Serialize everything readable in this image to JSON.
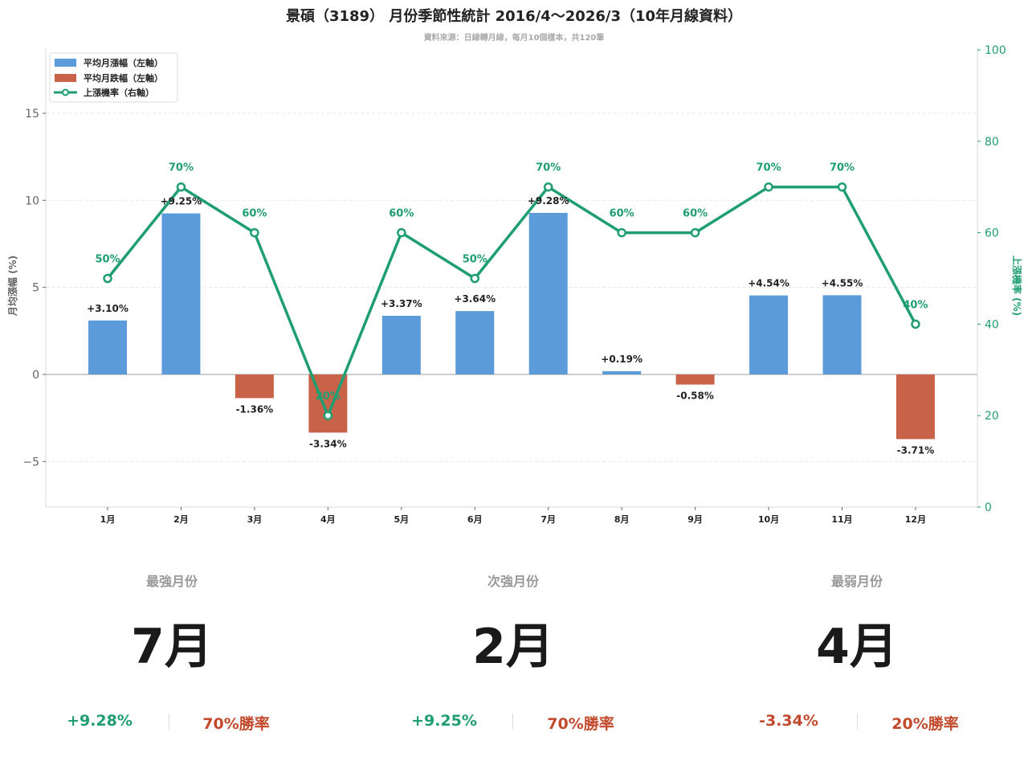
{
  "header": {
    "title": "景碩（3189） 月份季節性統計 2016/4～2026/3（10年月線資料）",
    "subtitle": "資料來源：日線轉月線，每月10個樣本，共120筆"
  },
  "legend": {
    "up_bar": "平均月漲幅（左軸）",
    "down_bar": "平均月跌幅（左軸）",
    "line": "上漲機率（右軸）"
  },
  "axes": {
    "left_label": "月均漲幅 (%)",
    "right_label": "上漲機率 (%)",
    "left_ticks": [
      "15",
      "10",
      "5",
      "0",
      "−5"
    ],
    "right_ticks": [
      "100",
      "80",
      "60",
      "40",
      "20",
      "0"
    ]
  },
  "colors": {
    "up": "#5b9bd9",
    "down": "#c8634a",
    "line": "#1f9e72",
    "stat_green": "#1f9e72",
    "stat_red": "#c24a2c"
  },
  "chart_data": {
    "type": "bar",
    "title": "景碩（3189） 月份季節性統計 2016/4～2026/3（10年月線資料）",
    "subtitle": "資料來源：日線轉月線，每月10個樣本，共120筆",
    "categories": [
      "1月",
      "2月",
      "3月",
      "4月",
      "5月",
      "6月",
      "7月",
      "8月",
      "9月",
      "10月",
      "11月",
      "12月"
    ],
    "series": [
      {
        "name": "平均月漲跌幅",
        "axis": "left",
        "type": "bar",
        "values": [
          3.1,
          9.25,
          -1.36,
          -3.34,
          3.37,
          3.64,
          9.28,
          0.19,
          -0.58,
          4.54,
          4.55,
          -3.71
        ],
        "labels": [
          "+3.10%",
          "+9.25%",
          "-1.36%",
          "-3.34%",
          "+3.37%",
          "+3.64%",
          "+9.28%",
          "+0.19%",
          "-0.58%",
          "+4.54%",
          "+4.55%",
          "-3.71%"
        ]
      },
      {
        "name": "上漲機率",
        "axis": "right",
        "type": "line",
        "values": [
          50,
          70,
          60,
          20,
          60,
          50,
          70,
          60,
          60,
          70,
          70,
          40
        ],
        "labels": [
          "50%",
          "70%",
          "60%",
          "20%",
          "60%",
          "50%",
          "70%",
          "60%",
          "60%",
          "70%",
          "70%",
          "40%"
        ]
      }
    ],
    "xlabel": "",
    "ylabel": "月均漲幅 (%)",
    "y2label": "上漲機率 (%)",
    "ylim": [
      -7.6,
      18.7
    ],
    "y2lim": [
      0,
      100
    ],
    "grid": true,
    "legend_position": "upper left"
  },
  "cards": [
    {
      "label": "最強月份",
      "month": "7月",
      "change": "+9.28%",
      "winrate": "70%勝率",
      "change_sign": "up"
    },
    {
      "label": "次強月份",
      "month": "2月",
      "change": "+9.25%",
      "winrate": "70%勝率",
      "change_sign": "up"
    },
    {
      "label": "最弱月份",
      "month": "4月",
      "change": "-3.34%",
      "winrate": "20%勝率",
      "change_sign": "down"
    }
  ]
}
